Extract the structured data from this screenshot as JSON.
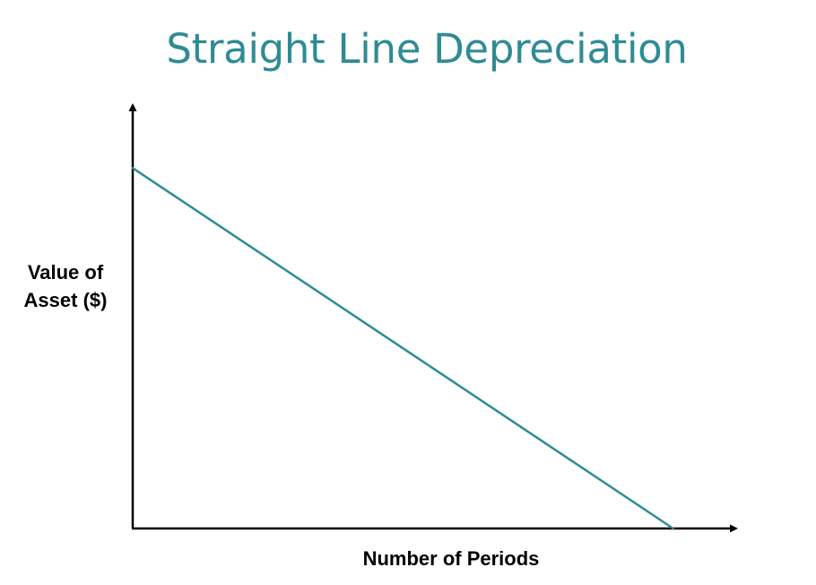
{
  "chart_data": {
    "type": "line",
    "title": "Straight Line Depreciation",
    "xlabel": "Number of Periods",
    "ylabel_lines": [
      "Value of",
      "Asset ($)"
    ],
    "x": [
      0,
      1
    ],
    "series": [
      {
        "values": [
          1,
          0
        ],
        "color": "#2e8b95"
      }
    ],
    "xlim": [
      0,
      1.12
    ],
    "ylim": [
      0,
      1.18
    ],
    "grid": false,
    "tick_labels": false,
    "legend": "none"
  },
  "colors": {
    "title": "#2e8b95",
    "line": "#2e8b95",
    "axes": "#000000"
  }
}
